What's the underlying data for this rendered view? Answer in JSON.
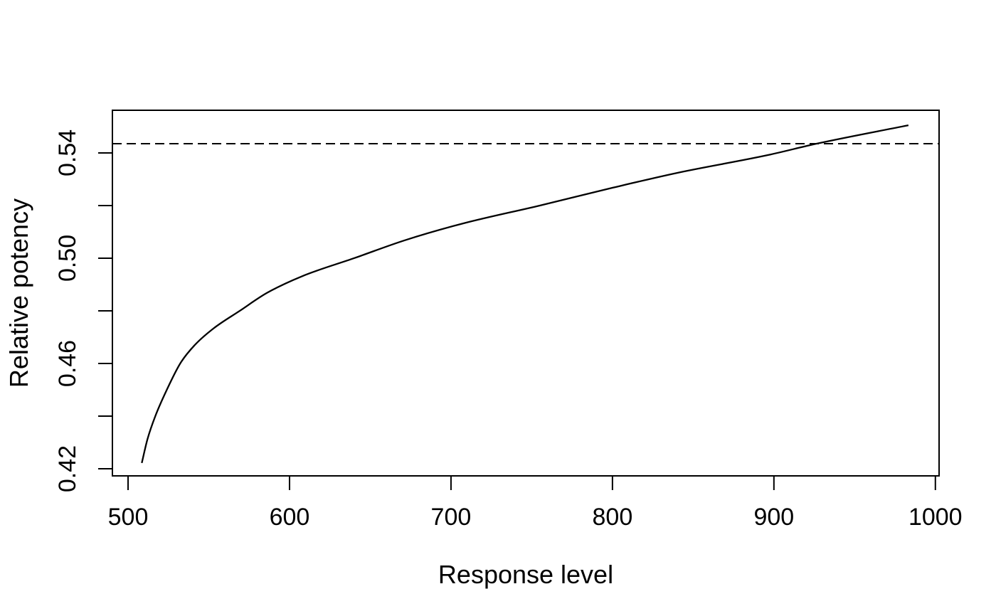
{
  "page": {
    "background": "#ffffff",
    "foreground": "#000000"
  },
  "chart_data": {
    "type": "line",
    "title": "",
    "xlabel": "Response level",
    "ylabel": "Relative potency",
    "grid": false,
    "legend": null,
    "axis_color": "#000000",
    "background_color": "#ffffff",
    "xlim": [
      490.3,
      1002.3
    ],
    "ylim": [
      0.4173,
      0.5562
    ],
    "x_ticks": [
      {
        "v": 500,
        "label": "500"
      },
      {
        "v": 600,
        "label": "600"
      },
      {
        "v": 700,
        "label": "700"
      },
      {
        "v": 800,
        "label": "800"
      },
      {
        "v": 900,
        "label": "900"
      },
      {
        "v": 1000,
        "label": "1000"
      }
    ],
    "y_ticks": [
      {
        "v": 0.42,
        "label": "0.42"
      },
      {
        "v": 0.44,
        "label": ""
      },
      {
        "v": 0.46,
        "label": "0.46"
      },
      {
        "v": 0.48,
        "label": ""
      },
      {
        "v": 0.5,
        "label": "0.50"
      },
      {
        "v": 0.52,
        "label": ""
      },
      {
        "v": 0.54,
        "label": "0.54"
      }
    ],
    "reference_line": {
      "y": 0.5435,
      "style": "dashed",
      "color": "#000000"
    },
    "series": [
      {
        "name": "relative-potency-vs-response-curve",
        "color": "#000000",
        "style": "solid",
        "points": [
          [
            508.5,
            0.4222
          ],
          [
            512.0,
            0.4312
          ],
          [
            517.0,
            0.4402
          ],
          [
            524.0,
            0.45
          ],
          [
            532.3,
            0.46
          ],
          [
            541.0,
            0.4668
          ],
          [
            552.7,
            0.4732
          ],
          [
            569.2,
            0.48
          ],
          [
            586.0,
            0.4868
          ],
          [
            608.0,
            0.4932
          ],
          [
            640.0,
            0.5
          ],
          [
            671.4,
            0.5068
          ],
          [
            707.5,
            0.5132
          ],
          [
            755.0,
            0.52
          ],
          [
            800.4,
            0.5268
          ],
          [
            840.0,
            0.5324
          ],
          [
            896.5,
            0.5392
          ],
          [
            926.4,
            0.5435
          ],
          [
            983.3,
            0.5505
          ]
        ]
      }
    ]
  }
}
